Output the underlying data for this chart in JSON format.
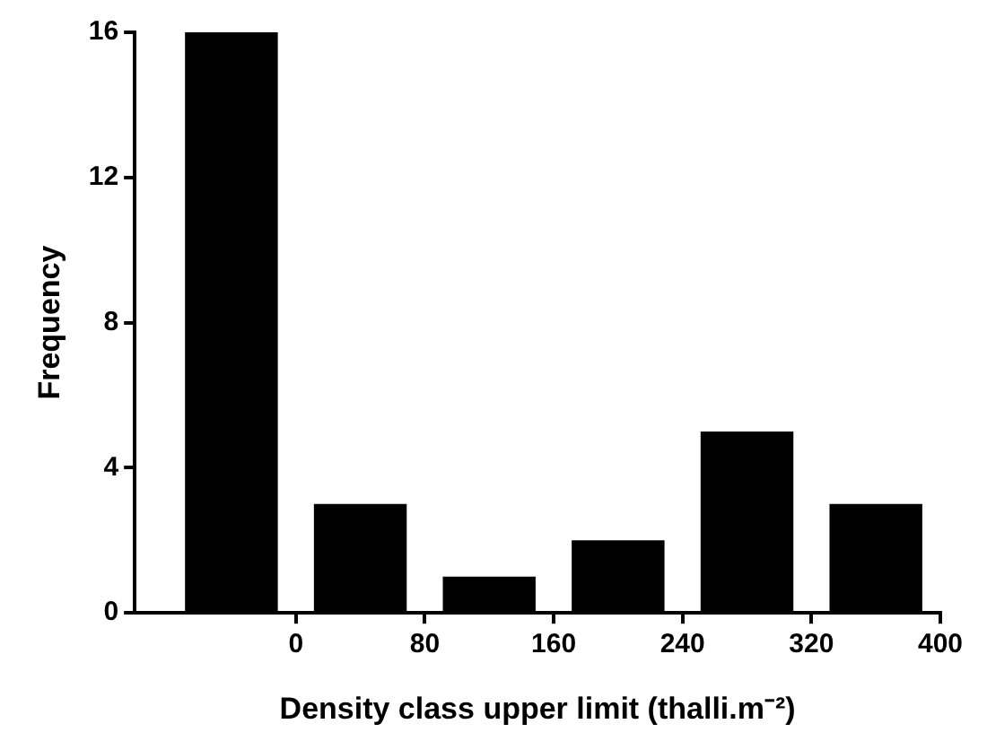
{
  "chart_data": {
    "type": "histogram",
    "xlabel": "Density class upper limit (thalli.m⁻²)",
    "ylabel": "Frequency",
    "bins": [
      -80,
      0,
      80,
      160,
      240,
      320,
      400
    ],
    "values": [
      16,
      3,
      1,
      2,
      5,
      3
    ],
    "color": "#000000",
    "xlim": [
      -100,
      400
    ],
    "xticks": [
      0,
      80,
      160,
      240,
      320,
      400
    ],
    "ylim": [
      0,
      16
    ],
    "yticks": [
      0,
      4,
      8,
      12,
      16
    ],
    "grid": false,
    "legend": false
  }
}
